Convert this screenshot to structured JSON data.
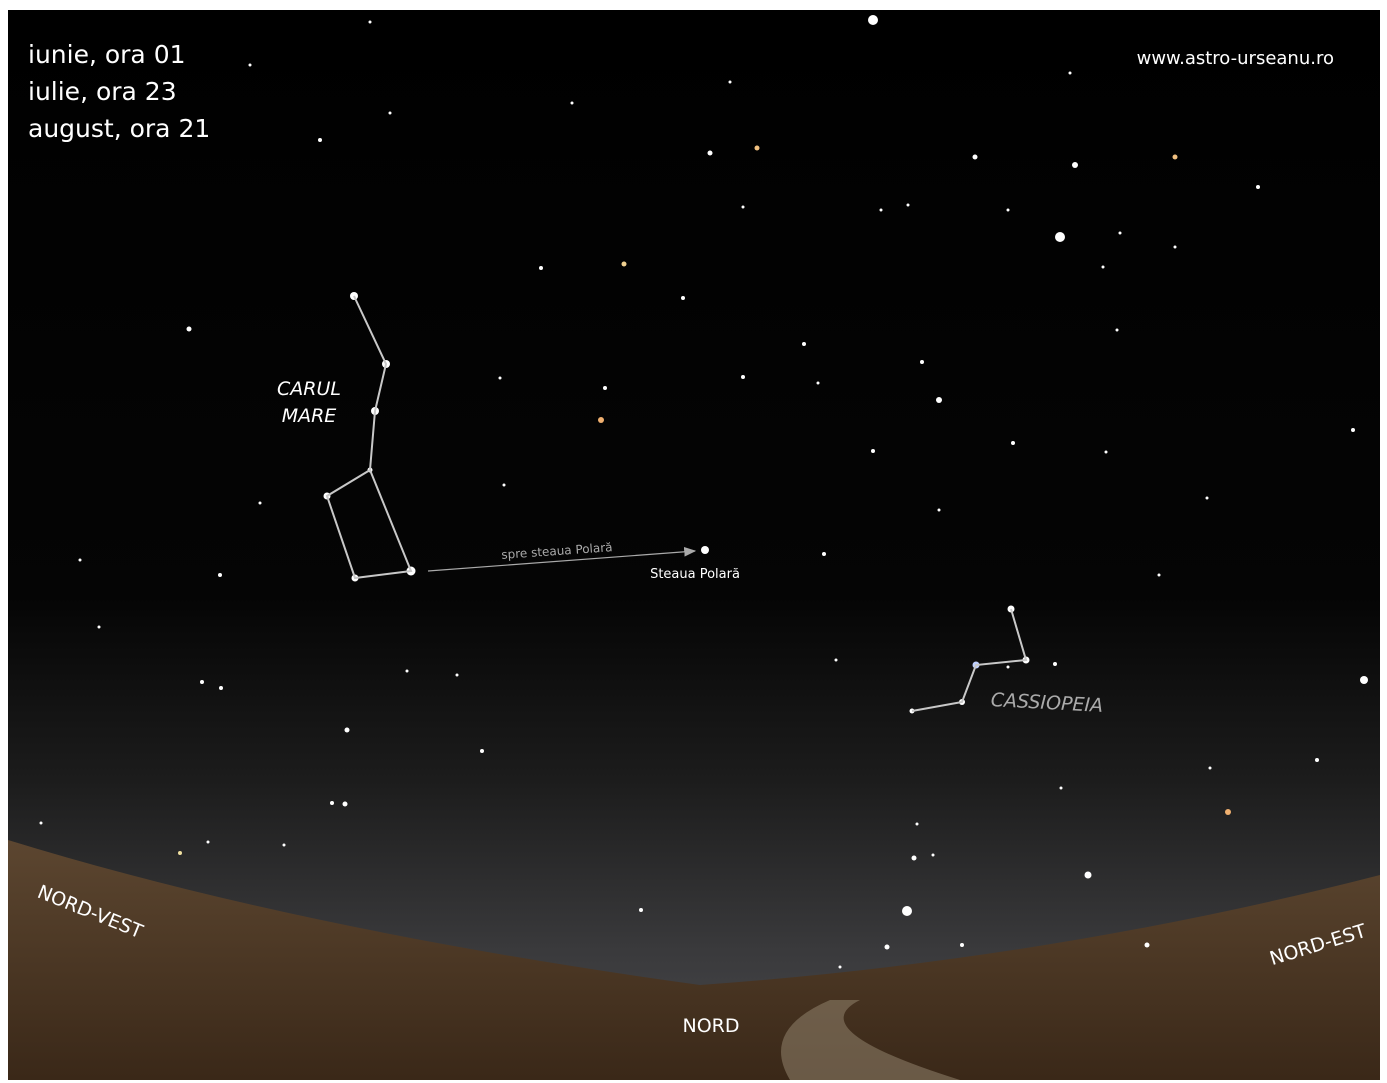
{
  "header": {
    "dates": [
      "iunie, ora 01",
      "iulie, ora 23",
      "august, ora 21"
    ],
    "website": "www.astro-urseanu.ro"
  },
  "constellations": {
    "big_dipper": [
      "CARUL",
      "MARE"
    ],
    "cassiopeia": "CASSIOPEIA"
  },
  "pointer": {
    "label": "spre steaua Polară",
    "target": "Steaua Polară"
  },
  "directions": {
    "northwest": "NORD-VEST",
    "north": "NORD",
    "northeast": "NORD-EST"
  }
}
